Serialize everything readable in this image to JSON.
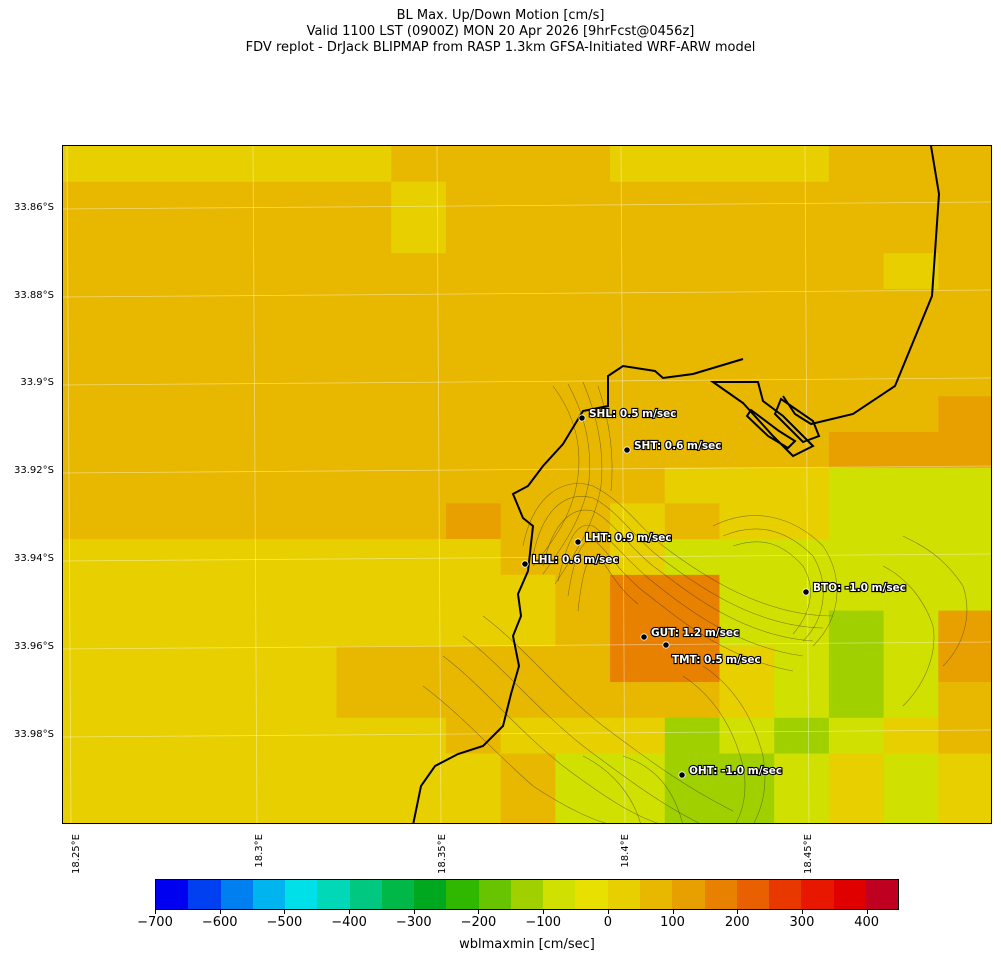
{
  "title": {
    "line1": "BL Max. Up/Down Motion [cm/s]",
    "line2": "Valid 1100 LST (0900Z) MON 20 Apr 2026 [9hrFcst@0456z]",
    "line3": "FDV replot - DrJack BLIPMAP from RASP 1.3km GFSA-Initiated WRF-ARW model"
  },
  "lat_labels": [
    "33.86°S",
    "33.88°S",
    "33.9°S",
    "33.92°S",
    "33.94°S",
    "33.96°S",
    "33.98°S"
  ],
  "lon_labels": [
    "18.25°E",
    "18.3°E",
    "18.35°E",
    "18.4°E",
    "18.45°E"
  ],
  "stations": [
    {
      "code": "SHL",
      "label": "SHL: 0.5 m/sec"
    },
    {
      "code": "SHT",
      "label": "SHT: 0.6 m/sec"
    },
    {
      "code": "LHT",
      "label": "LHT: 0.9 m/sec"
    },
    {
      "code": "LHL",
      "label": "LHL: 0.6 m/sec"
    },
    {
      "code": "BTO",
      "label": "BTO: -1.0 m/sec"
    },
    {
      "code": "GUT",
      "label": "GUT: 1.2 m/sec"
    },
    {
      "code": "TMT",
      "label": "TMT: 0.5 m/sec"
    },
    {
      "code": "OHT",
      "label": "OHT: -1.0 m/sec"
    }
  ],
  "colorbar": {
    "label": "wblmaxmin [cm/sec]",
    "tick_labels": [
      "−700",
      "−600",
      "−500",
      "−400",
      "−300",
      "−200",
      "−100",
      "0",
      "100",
      "200",
      "300",
      "400"
    ],
    "colors": [
      "#0000f0",
      "#0040f0",
      "#0080f0",
      "#00b4f0",
      "#00e0e8",
      "#00d8b8",
      "#00c880",
      "#00b848",
      "#00a820",
      "#30b800",
      "#68c400",
      "#a0d000",
      "#d0e000",
      "#e8e000",
      "#e8d000",
      "#e8b800",
      "#e8a000",
      "#e88000",
      "#e86000",
      "#e83800",
      "#e81800",
      "#e00000",
      "#c00020"
    ]
  },
  "grid_values_cm_s": [
    [
      30,
      30,
      30,
      30,
      30,
      30,
      50,
      50,
      50,
      50,
      30,
      30,
      30,
      30,
      50,
      50,
      50
    ],
    [
      50,
      50,
      50,
      50,
      50,
      50,
      30,
      50,
      50,
      50,
      50,
      50,
      50,
      50,
      50,
      50,
      50
    ],
    [
      50,
      50,
      50,
      50,
      50,
      50,
      30,
      50,
      50,
      50,
      50,
      50,
      50,
      50,
      50,
      50,
      50
    ],
    [
      50,
      50,
      50,
      50,
      50,
      50,
      50,
      50,
      50,
      50,
      50,
      50,
      50,
      50,
      50,
      30,
      50
    ],
    [
      50,
      50,
      50,
      50,
      50,
      50,
      50,
      50,
      50,
      50,
      50,
      80,
      80,
      80,
      50,
      50,
      80
    ],
    [
      50,
      50,
      50,
      50,
      50,
      50,
      50,
      50,
      50,
      50,
      50,
      50,
      50,
      50,
      50,
      50,
      50
    ],
    [
      50,
      50,
      50,
      50,
      50,
      50,
      50,
      50,
      50,
      50,
      50,
      50,
      50,
      50,
      80,
      80,
      50
    ],
    [
      50,
      50,
      50,
      50,
      50,
      80,
      50,
      50,
      50,
      50,
      50,
      50,
      50,
      50,
      80,
      80,
      110
    ],
    [
      50,
      50,
      50,
      50,
      50,
      80,
      50,
      50,
      50,
      50,
      50,
      50,
      50,
      50,
      110,
      110,
      110
    ],
    [
      50,
      50,
      50,
      50,
      50,
      50,
      50,
      80,
      80,
      50,
      50,
      30,
      30,
      30,
      -70,
      -70,
      -70
    ],
    [
      50,
      50,
      50,
      50,
      50,
      50,
      50,
      110,
      50,
      50,
      30,
      50,
      30,
      30,
      -70,
      -70,
      -70
    ],
    [
      30,
      30,
      30,
      30,
      30,
      30,
      30,
      30,
      50,
      50,
      30,
      -70,
      -70,
      -70,
      -100,
      -100,
      -100
    ],
    [
      30,
      30,
      30,
      30,
      30,
      30,
      30,
      30,
      30,
      50,
      160,
      160,
      -70,
      -70,
      -100,
      -100,
      -100
    ],
    [
      30,
      30,
      30,
      30,
      30,
      30,
      30,
      30,
      30,
      50,
      160,
      160,
      -70,
      -100,
      -130,
      -70,
      140
    ],
    [
      30,
      30,
      30,
      30,
      30,
      50,
      50,
      50,
      80,
      80,
      160,
      160,
      30,
      -100,
      -130,
      -70,
      140
    ],
    [
      30,
      30,
      30,
      30,
      30,
      50,
      50,
      80,
      80,
      80,
      50,
      80,
      30,
      -100,
      -130,
      -70,
      80
    ],
    [
      30,
      30,
      30,
      30,
      30,
      30,
      30,
      80,
      30,
      30,
      30,
      -130,
      -100,
      -130,
      -70,
      30,
      80
    ],
    [
      30,
      30,
      30,
      30,
      30,
      30,
      30,
      30,
      80,
      -100,
      -100,
      -130,
      -130,
      -100,
      30,
      -70,
      30
    ],
    [
      30,
      30,
      30,
      30,
      30,
      30,
      30,
      30,
      80,
      -100,
      -100,
      -130,
      -130,
      -100,
      30,
      -70,
      30
    ]
  ]
}
